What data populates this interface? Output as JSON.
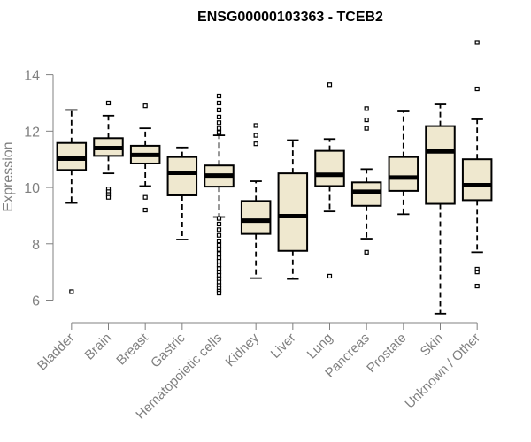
{
  "chart_data": {
    "type": "boxplot",
    "title": "ENSG00000103363 - TCEB2",
    "xlabel": "",
    "ylabel": "Expression",
    "ylim": [
      5.2,
      15.4
    ],
    "yticks": [
      6,
      8,
      10,
      12,
      14
    ],
    "box_fill": "#efe8cf",
    "box_stroke": "#000000",
    "axis_color": "#808080",
    "categories": [
      "Bladder",
      "Brain",
      "Breast",
      "Gastric",
      "Hematopoietic cells",
      "Kidney",
      "Liver",
      "Lung",
      "Pancreas",
      "Prostate",
      "Skin",
      "Unknown / Other"
    ],
    "boxes": [
      {
        "category": "Bladder",
        "whisker_low": 9.45,
        "q1": 10.62,
        "median": 11.02,
        "q3": 11.58,
        "whisker_high": 12.75,
        "outliers": [
          6.3
        ]
      },
      {
        "category": "Brain",
        "whisker_low": 10.5,
        "q1": 11.12,
        "median": 11.4,
        "q3": 11.75,
        "whisker_high": 12.55,
        "outliers": [
          13.0,
          9.95,
          9.85,
          9.75,
          9.65
        ]
      },
      {
        "category": "Breast",
        "whisker_low": 10.05,
        "q1": 10.85,
        "median": 11.15,
        "q3": 11.48,
        "whisker_high": 12.1,
        "outliers": [
          12.9,
          9.65,
          9.2
        ]
      },
      {
        "category": "Gastric",
        "whisker_low": 8.15,
        "q1": 9.72,
        "median": 10.52,
        "q3": 11.08,
        "whisker_high": 11.42,
        "outliers": []
      },
      {
        "category": "Hematopoietic cells",
        "whisker_low": 8.95,
        "q1": 10.03,
        "median": 10.42,
        "q3": 10.78,
        "whisker_high": 11.85,
        "outliers": [
          13.25,
          13.0,
          12.75,
          12.5,
          12.3,
          12.1,
          11.95,
          8.9,
          8.7,
          8.5,
          8.3,
          8.1,
          7.95,
          7.8,
          7.65,
          7.5,
          7.38,
          7.25,
          7.12,
          7.0,
          6.88,
          6.76,
          6.64,
          6.52,
          6.42,
          6.32,
          6.25
        ]
      },
      {
        "category": "Kidney",
        "whisker_low": 6.78,
        "q1": 8.35,
        "median": 8.82,
        "q3": 9.52,
        "whisker_high": 10.22,
        "outliers": [
          12.2,
          11.85,
          11.55
        ]
      },
      {
        "category": "Liver",
        "whisker_low": 6.75,
        "q1": 7.75,
        "median": 8.98,
        "q3": 10.5,
        "whisker_high": 11.68,
        "outliers": []
      },
      {
        "category": "Lung",
        "whisker_low": 9.15,
        "q1": 10.05,
        "median": 10.45,
        "q3": 11.3,
        "whisker_high": 11.72,
        "outliers": [
          13.65,
          6.85
        ]
      },
      {
        "category": "Pancreas",
        "whisker_low": 8.18,
        "q1": 9.35,
        "median": 9.85,
        "q3": 10.18,
        "whisker_high": 10.65,
        "outliers": [
          12.8,
          12.4,
          12.1,
          7.7
        ]
      },
      {
        "category": "Prostate",
        "whisker_low": 9.05,
        "q1": 9.88,
        "median": 10.35,
        "q3": 11.08,
        "whisker_high": 12.7,
        "outliers": []
      },
      {
        "category": "Skin",
        "whisker_low": 5.52,
        "q1": 9.42,
        "median": 11.28,
        "q3": 12.18,
        "whisker_high": 12.95,
        "outliers": []
      },
      {
        "category": "Unknown / Other",
        "whisker_low": 7.7,
        "q1": 9.55,
        "median": 10.08,
        "q3": 11.0,
        "whisker_high": 12.42,
        "outliers": [
          15.15,
          13.5,
          7.1,
          7.0,
          6.5
        ]
      }
    ]
  }
}
